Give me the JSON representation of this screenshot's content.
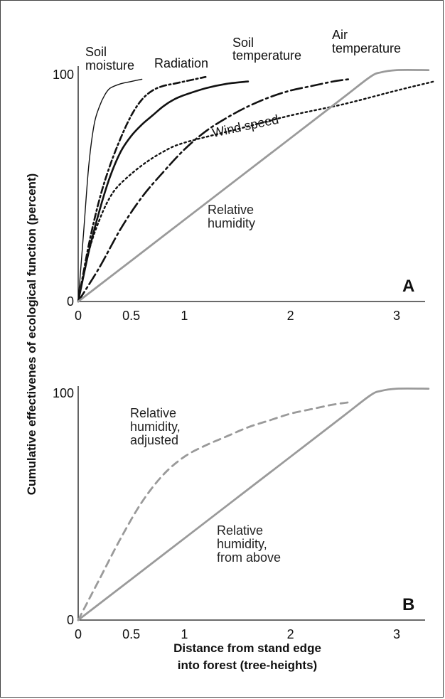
{
  "figure": {
    "y_axis_title": "Cumulative effectivenes of ecological function (percent)",
    "x_axis_title_line1": "Distance from stand edge",
    "x_axis_title_line2": "into forest (tree-heights)"
  },
  "chart_data": [
    {
      "type": "line",
      "panel_label": "A",
      "xlim": [
        0,
        3.3
      ],
      "ylim": [
        0,
        100
      ],
      "x_ticks": [
        {
          "value": 0,
          "label": "0"
        },
        {
          "value": 0.5,
          "label": "0.5"
        },
        {
          "value": 1,
          "label": "1"
        },
        {
          "value": 2,
          "label": "2"
        },
        {
          "value": 3,
          "label": "3"
        }
      ],
      "y_ticks": [
        {
          "value": 0,
          "label": "0"
        },
        {
          "value": 100,
          "label": "100"
        }
      ],
      "series": [
        {
          "name": "Soil moisture",
          "label_lines": [
            "Soil",
            "moisture"
          ],
          "style": "thin-solid",
          "color": "#111111",
          "x": [
            0,
            0.05,
            0.1,
            0.15,
            0.2,
            0.25,
            0.3,
            0.4,
            0.5,
            0.6
          ],
          "y": [
            0,
            30,
            60,
            78,
            86,
            91,
            94,
            96,
            97,
            98
          ]
        },
        {
          "name": "Radiation",
          "label_lines": [
            "Radiation"
          ],
          "style": "dash-dot",
          "color": "#111111",
          "x": [
            0,
            0.1,
            0.2,
            0.3,
            0.4,
            0.5,
            0.6,
            0.7,
            0.8,
            0.9,
            1.0,
            1.1,
            1.2
          ],
          "y": [
            0,
            25,
            45,
            60,
            72,
            82,
            89,
            93,
            95,
            96,
            97,
            98,
            99
          ]
        },
        {
          "name": "Soil temperature",
          "label_lines": [
            "Soil",
            "temperature"
          ],
          "style": "thick-solid",
          "color": "#111111",
          "x": [
            0,
            0.1,
            0.2,
            0.3,
            0.4,
            0.5,
            0.6,
            0.7,
            0.8,
            0.9,
            1.0,
            1.2,
            1.4,
            1.6
          ],
          "y": [
            0,
            22,
            40,
            55,
            66,
            73,
            78,
            82,
            86,
            89,
            91,
            94,
            96,
            97
          ]
        },
        {
          "name": "Air temperature",
          "label_lines": [
            "Air",
            "temperature"
          ],
          "style": "long-dash-dot",
          "color": "#111111",
          "x": [
            0,
            0.2,
            0.4,
            0.6,
            0.8,
            1.0,
            1.2,
            1.4,
            1.6,
            1.8,
            2.0,
            2.2,
            2.4,
            2.55
          ],
          "y": [
            0,
            15,
            32,
            46,
            57,
            67,
            75,
            81,
            86,
            90,
            93,
            95,
            97,
            98
          ]
        },
        {
          "name": "Wind speed",
          "label_lines": [
            "Wind speed"
          ],
          "style": "dotted",
          "color": "#111111",
          "x": [
            0,
            0.1,
            0.2,
            0.3,
            0.4,
            0.6,
            0.8,
            1.0,
            1.5,
            2.0,
            2.5,
            3.0,
            3.35
          ],
          "y": [
            0,
            22,
            36,
            46,
            52,
            60,
            66,
            70,
            76,
            82,
            87,
            93,
            97
          ]
        },
        {
          "name": "Relative humidity",
          "label_lines": [
            "Relative",
            "humidity"
          ],
          "style": "gray-solid",
          "color": "#9a9a9a",
          "x": [
            0,
            0.5,
            1.0,
            1.5,
            2.0,
            2.5,
            2.75,
            2.85,
            3.0,
            3.3
          ],
          "y": [
            0,
            18,
            36,
            54,
            72,
            90,
            99,
            101,
            102,
            102
          ]
        }
      ]
    },
    {
      "type": "line",
      "panel_label": "B",
      "xlim": [
        0,
        3.3
      ],
      "ylim": [
        0,
        100
      ],
      "x_ticks": [
        {
          "value": 0,
          "label": "0"
        },
        {
          "value": 0.5,
          "label": "0.5"
        },
        {
          "value": 1,
          "label": "1"
        },
        {
          "value": 2,
          "label": "2"
        },
        {
          "value": 3,
          "label": "3"
        }
      ],
      "y_ticks": [
        {
          "value": 0,
          "label": "0"
        },
        {
          "value": 100,
          "label": "100"
        }
      ],
      "series": [
        {
          "name": "Relative humidity, adjusted",
          "label_lines": [
            "Relative",
            "humidity,",
            "adjusted"
          ],
          "style": "gray-dashed",
          "color": "#9a9a9a",
          "x": [
            0,
            0.2,
            0.4,
            0.6,
            0.8,
            1.0,
            1.2,
            1.4,
            1.6,
            1.8,
            2.0,
            2.2,
            2.4,
            2.55
          ],
          "y": [
            0,
            18,
            36,
            52,
            64,
            72,
            77,
            81,
            85,
            88,
            91,
            93,
            95,
            96
          ]
        },
        {
          "name": "Relative humidity, from above",
          "label_lines": [
            "Relative",
            "humidity,",
            "from above"
          ],
          "style": "gray-solid",
          "color": "#9a9a9a",
          "x": [
            0,
            0.5,
            1.0,
            1.5,
            2.0,
            2.5,
            2.75,
            2.85,
            3.0,
            3.3
          ],
          "y": [
            0,
            18,
            36,
            54,
            72,
            90,
            99,
            101,
            102,
            102
          ]
        }
      ]
    }
  ]
}
